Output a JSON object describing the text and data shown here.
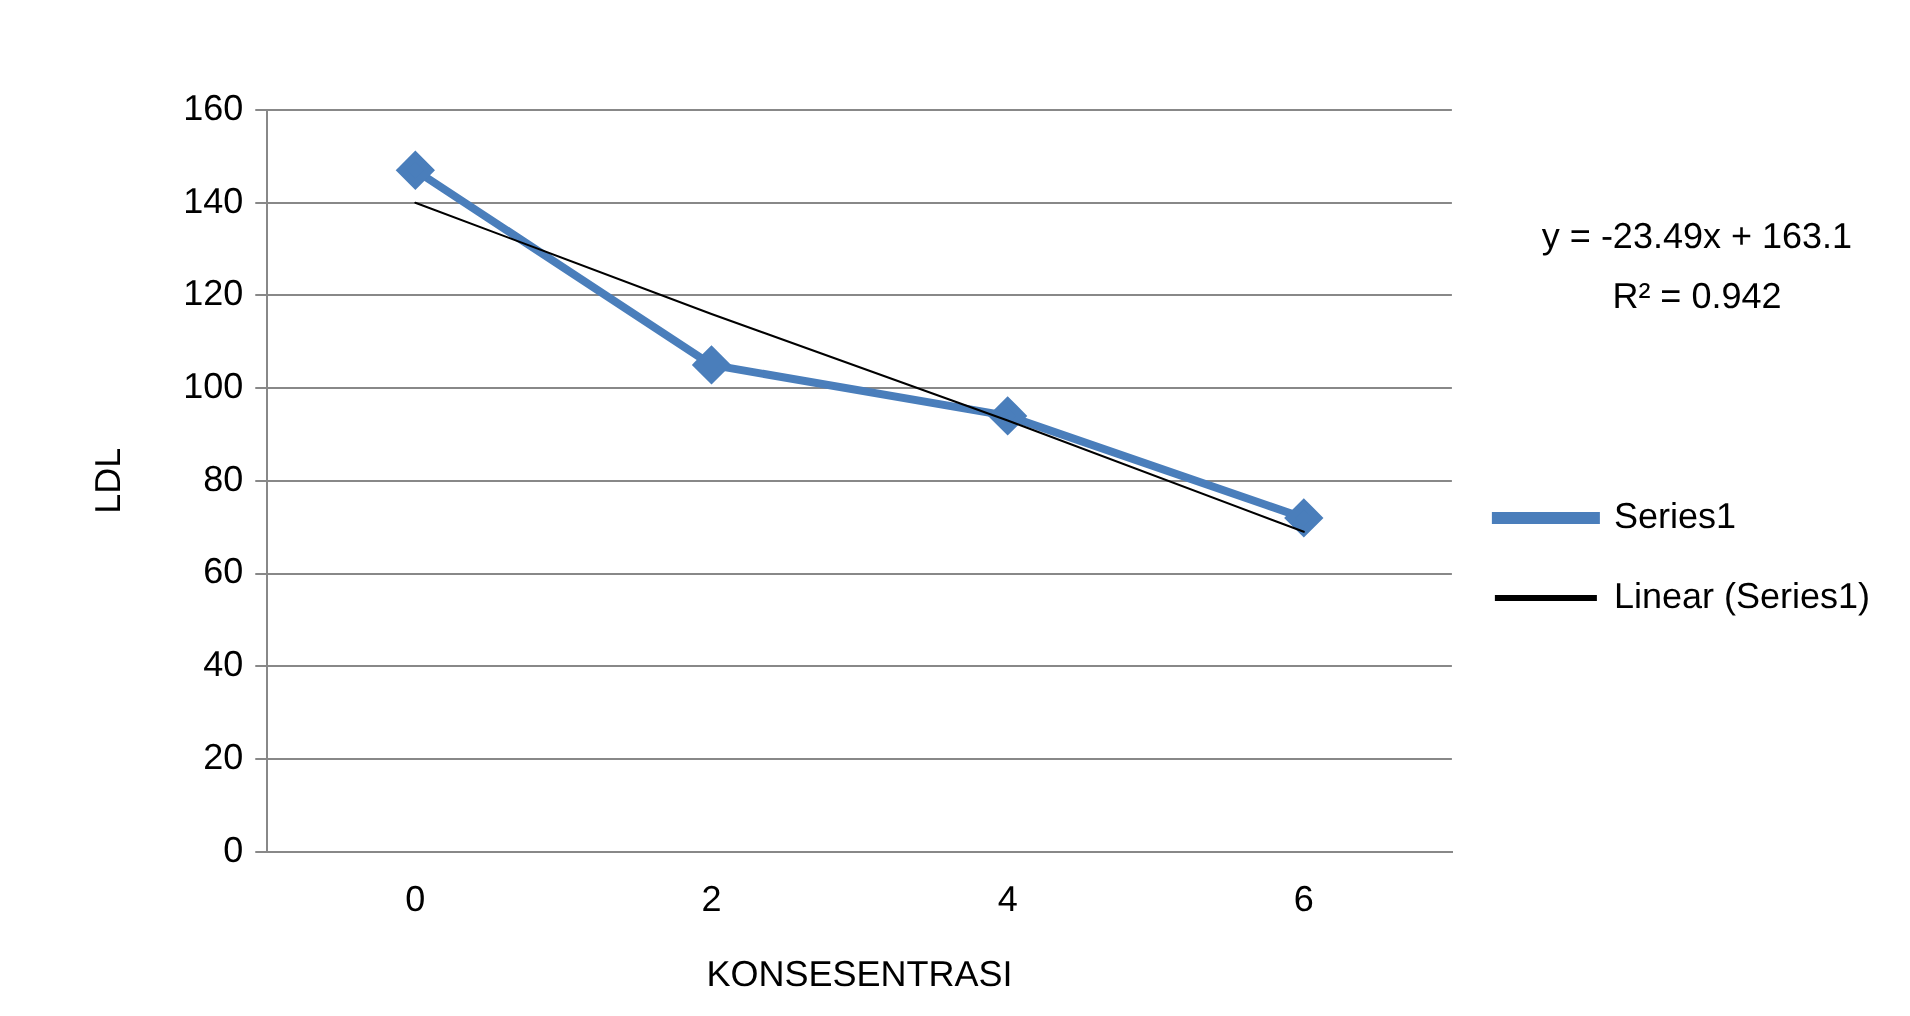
{
  "chart_data": {
    "type": "line",
    "xlabel": "KONSESENTRASI",
    "ylabel": "LDL",
    "categories": [
      "0",
      "2",
      "4",
      "6"
    ],
    "series": [
      {
        "name": "Series1",
        "color": "#4a7ebb",
        "values": [
          147,
          105,
          94,
          72
        ],
        "marker": "diamond",
        "line_style": "solid"
      },
      {
        "name": "Linear (Series1)",
        "color": "#000000",
        "values": [
          140,
          116,
          93,
          69
        ],
        "marker": "none",
        "line_style": "solid"
      }
    ],
    "ylim": [
      0,
      160
    ],
    "yticks": [
      0,
      20,
      40,
      60,
      80,
      100,
      120,
      140,
      160
    ],
    "grid": "y",
    "legend": "right",
    "annotations": [
      "y = -23.49x + 163.1",
      "R² = 0.942"
    ]
  }
}
